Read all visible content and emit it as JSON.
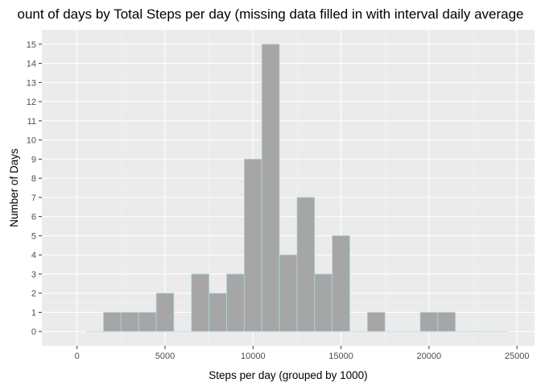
{
  "chart_data": {
    "type": "bar",
    "title": "ount of days by Total Steps per day (missing data filled in with interval daily average",
    "xlabel": "Steps per day (grouped by 1000)",
    "ylabel": "Number of Days",
    "bin_width": 1000,
    "bin_centers": [
      1000,
      2000,
      3000,
      4000,
      5000,
      6000,
      7000,
      8000,
      9000,
      10000,
      11000,
      12000,
      13000,
      14000,
      15000,
      16000,
      17000,
      18000,
      19000,
      20000,
      21000,
      22000,
      23000,
      24000
    ],
    "values": [
      0,
      1,
      1,
      1,
      2,
      0,
      3,
      2,
      3,
      9,
      15,
      4,
      7,
      3,
      5,
      0,
      1,
      0,
      0,
      1,
      1,
      0,
      0,
      0
    ],
    "xlim": [
      -2000,
      26000
    ],
    "ylim": [
      -0.75,
      15.75
    ],
    "x_ticks": [
      0,
      5000,
      10000,
      15000,
      20000,
      25000
    ],
    "x_tick_labels": [
      "0",
      "5000",
      "10000",
      "15000",
      "20000",
      "25000"
    ],
    "y_ticks": [
      0,
      1,
      2,
      3,
      4,
      5,
      6,
      7,
      8,
      9,
      10,
      11,
      12,
      13,
      14,
      15
    ],
    "y_tick_labels": [
      "0",
      "1",
      "2",
      "3",
      "4",
      "5",
      "6",
      "7",
      "8",
      "9",
      "10",
      "11",
      "12",
      "13",
      "14",
      "15"
    ],
    "grid": true,
    "colors": {
      "panel_background": "#ebebeb",
      "grid_major": "#ffffff",
      "grid_minor": "#f3f3f3",
      "bar_fill": "#a6a6a6",
      "bar_outline": "#add8e6",
      "tick_text": "#4d4d4d"
    }
  }
}
